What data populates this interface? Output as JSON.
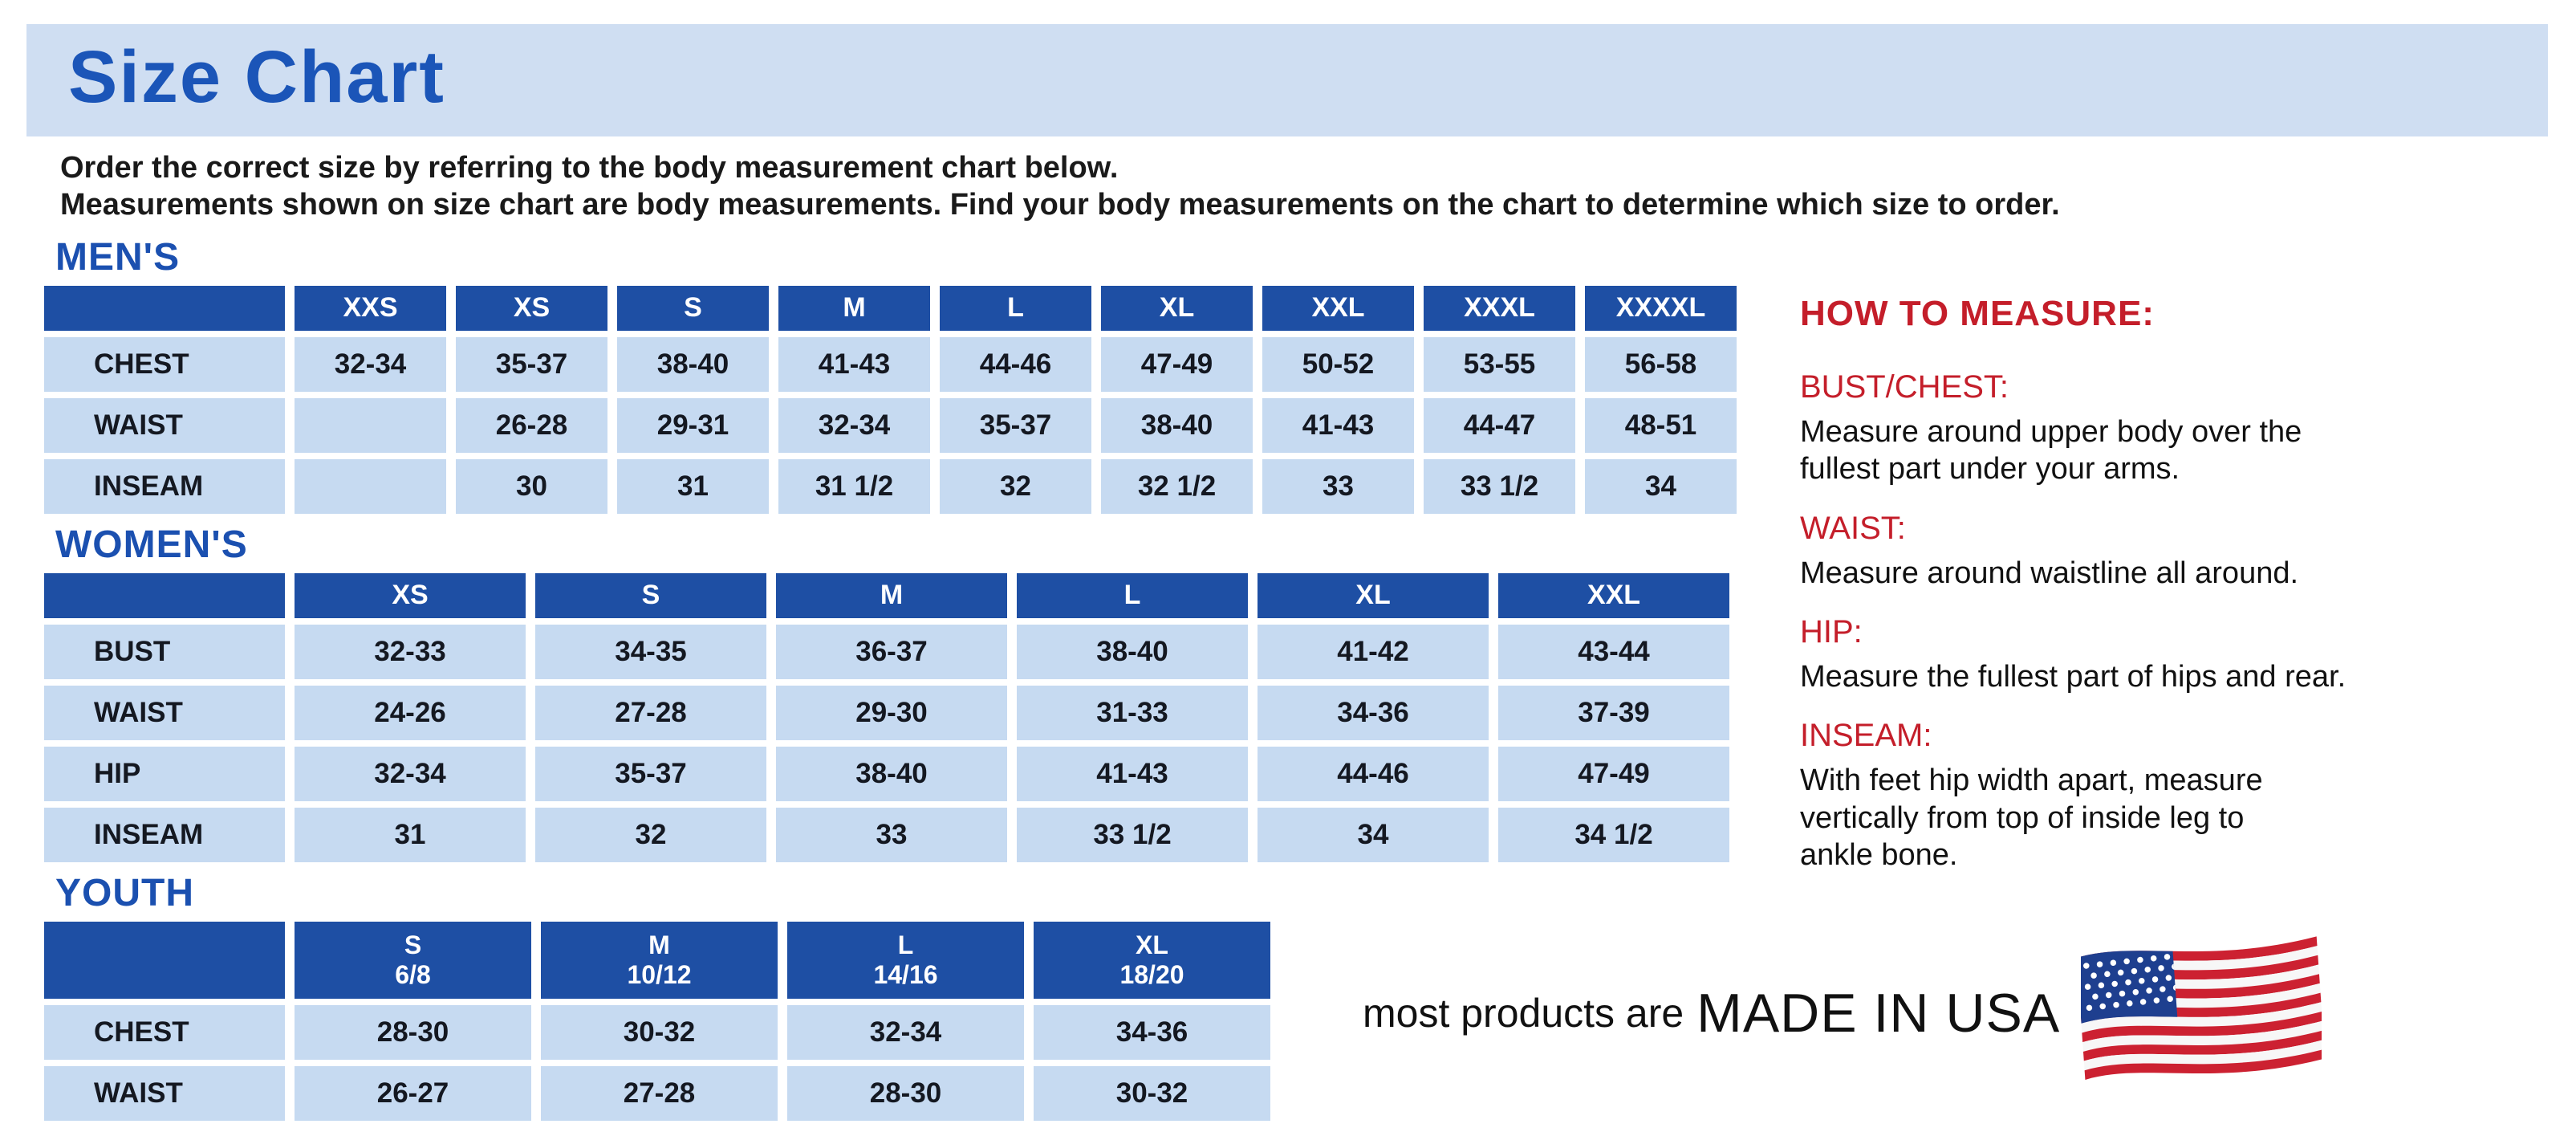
{
  "title": "Size Chart",
  "intro": {
    "line1": "Order the correct size by referring to the body measurement chart below.",
    "line2": "Measurements shown on size chart are body measurements.  Find your body measurements on the chart to determine which size to order."
  },
  "tables": [
    {
      "heading": "MEN'S",
      "columns": [
        "XXS",
        "XS",
        "S",
        "M",
        "L",
        "XL",
        "XXL",
        "XXXL",
        "XXXXL"
      ],
      "rows": [
        {
          "label": "CHEST",
          "values": [
            "32-34",
            "35-37",
            "38-40",
            "41-43",
            "44-46",
            "47-49",
            "50-52",
            "53-55",
            "56-58"
          ]
        },
        {
          "label": "WAIST",
          "values": [
            "",
            "26-28",
            "29-31",
            "32-34",
            "35-37",
            "38-40",
            "41-43",
            "44-47",
            "48-51"
          ]
        },
        {
          "label": "INSEAM",
          "values": [
            "",
            "30",
            "31",
            "31 1/2",
            "32",
            "32 1/2",
            "33",
            "33 1/2",
            "34"
          ]
        }
      ]
    },
    {
      "heading": "WOMEN'S",
      "columns": [
        "XS",
        "S",
        "M",
        "L",
        "XL",
        "XXL"
      ],
      "rows": [
        {
          "label": "BUST",
          "values": [
            "32-33",
            "34-35",
            "36-37",
            "38-40",
            "41-42",
            "43-44"
          ]
        },
        {
          "label": "WAIST",
          "values": [
            "24-26",
            "27-28",
            "29-30",
            "31-33",
            "34-36",
            "37-39"
          ]
        },
        {
          "label": "HIP",
          "values": [
            "32-34",
            "35-37",
            "38-40",
            "41-43",
            "44-46",
            "47-49"
          ]
        },
        {
          "label": "INSEAM",
          "values": [
            "31",
            "32",
            "33",
            "33 1/2",
            "34",
            "34 1/2"
          ]
        }
      ]
    },
    {
      "heading": "YOUTH",
      "columns": [
        [
          "S",
          "6/8"
        ],
        [
          "M",
          "10/12"
        ],
        [
          "L",
          "14/16"
        ],
        [
          "XL",
          "18/20"
        ]
      ],
      "rows": [
        {
          "label": "CHEST",
          "values": [
            "28-30",
            "30-32",
            "32-34",
            "34-36"
          ]
        },
        {
          "label": "WAIST",
          "values": [
            "26-27",
            "27-28",
            "28-30",
            "30-32"
          ]
        }
      ]
    }
  ],
  "how_to_measure": {
    "heading": "HOW TO MEASURE:",
    "sections": [
      {
        "label": "BUST/CHEST:",
        "text": "Measure around upper body over the\nfullest part under your arms."
      },
      {
        "label": "WAIST:",
        "text": "Measure around waistline all around."
      },
      {
        "label": "HIP:",
        "text": "Measure the fullest part of hips and rear."
      },
      {
        "label": "INSEAM:",
        "text": "With feet hip width apart, measure\nvertically from top of inside leg to\nankle bone."
      }
    ]
  },
  "footer": {
    "prefix": "most products are",
    "emphasis": "MADE IN USA",
    "flag_icon": "usa-flag-icon"
  },
  "colors": {
    "banner-bg": "#cfdef2",
    "title-blue": "#1b55b8",
    "heading-blue": "#1b50b0",
    "table-header-bg": "#1e4fa4",
    "table-header-text": "#ffffff",
    "cell-bg": "#c6daf1",
    "cell-text": "#141821",
    "accent-red": "#c41e2a",
    "body-text": "#111111",
    "flag-red": "#cc2131",
    "flag-white": "#f7f7f7",
    "flag-blue": "#1e3f8f"
  }
}
